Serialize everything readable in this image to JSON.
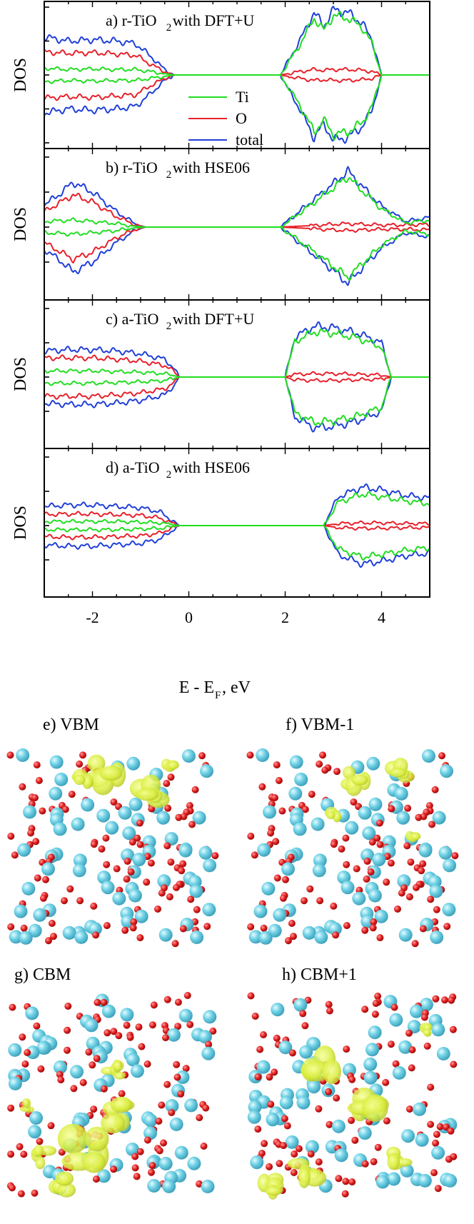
{
  "chart_data": {
    "type": "line",
    "xlabel": "E - E",
    "xlabel_sub": "F",
    "xlabel_unit": ", eV",
    "ylabel": "DOS",
    "xlim": [
      -3.0,
      5.0
    ],
    "ylim": [
      -1.0,
      1.0
    ],
    "xticks": [
      -2,
      0,
      2,
      4
    ],
    "xtick_labels": [
      "-2",
      "0",
      "2",
      "4"
    ],
    "legend": {
      "placement": "center-left (panel a)",
      "entries": [
        {
          "name": "Ti",
          "color": "#22dd22"
        },
        {
          "name": "O",
          "color": "#e8202a"
        },
        {
          "name": "total",
          "color": "#1f3fd8"
        }
      ]
    },
    "panels": [
      {
        "title_pre": "a) r-TiO",
        "title_sub": "2",
        "title_post": " with DFT+U",
        "valence_end": -0.3,
        "conduction_start": 1.9,
        "conduction_end": 4.0,
        "series": [
          {
            "name": "total",
            "x": [
              -3.0,
              -2.5,
              -2.0,
              -1.5,
              -1.1,
              -0.8,
              -0.5,
              -0.3,
              1.9,
              2.3,
              2.6,
              2.8,
              3.0,
              3.3,
              3.6,
              3.8,
              4.0
            ],
            "y": [
              0.56,
              0.5,
              0.52,
              0.5,
              0.46,
              0.28,
              0.08,
              0.0,
              0.0,
              0.5,
              0.92,
              0.72,
              0.96,
              0.92,
              0.76,
              0.52,
              0.0
            ]
          },
          {
            "name": "O",
            "x": [
              -3.0,
              -2.5,
              -2.0,
              -1.5,
              -1.1,
              -0.8,
              -0.5,
              -0.3,
              1.9,
              2.3,
              2.6,
              2.8,
              3.0,
              3.3,
              3.6,
              3.8,
              4.0
            ],
            "y": [
              0.34,
              0.32,
              0.33,
              0.31,
              0.29,
              0.16,
              0.05,
              0.0,
              0.0,
              0.05,
              0.08,
              0.07,
              0.08,
              0.08,
              0.07,
              0.05,
              0.0
            ]
          },
          {
            "name": "Ti",
            "x": [
              -3.0,
              -2.5,
              -2.0,
              -1.5,
              -1.1,
              -0.8,
              -0.5,
              -0.3,
              1.9,
              2.3,
              2.6,
              2.8,
              3.0,
              3.3,
              3.6,
              3.8,
              4.0
            ],
            "y": [
              0.1,
              0.08,
              0.09,
              0.08,
              0.08,
              0.05,
              0.02,
              0.0,
              0.0,
              0.44,
              0.84,
              0.66,
              0.88,
              0.84,
              0.7,
              0.47,
              0.0
            ]
          }
        ]
      },
      {
        "title_pre": "b) r-TiO",
        "title_sub": "2",
        "title_post": " with HSE06",
        "valence_end": -0.9,
        "conduction_start": 1.9,
        "conduction_end": 5.0,
        "series": [
          {
            "name": "total",
            "x": [
              -3.0,
              -2.7,
              -2.4,
              -2.0,
              -1.5,
              -1.1,
              -0.9,
              1.9,
              2.5,
              3.0,
              3.3,
              3.6,
              4.0,
              4.5,
              5.0
            ],
            "y": [
              0.32,
              0.46,
              0.64,
              0.5,
              0.22,
              0.04,
              0.0,
              0.0,
              0.34,
              0.62,
              0.8,
              0.58,
              0.3,
              0.08,
              0.14
            ]
          },
          {
            "name": "O",
            "x": [
              -3.0,
              -2.7,
              -2.4,
              -2.0,
              -1.5,
              -1.1,
              -0.9,
              1.9,
              2.5,
              3.0,
              3.3,
              3.6,
              4.0,
              4.5,
              5.0
            ],
            "y": [
              0.22,
              0.34,
              0.46,
              0.36,
              0.15,
              0.03,
              0.0,
              0.0,
              0.02,
              0.04,
              0.05,
              0.04,
              0.03,
              0.03,
              0.04
            ]
          },
          {
            "name": "Ti",
            "x": [
              -3.0,
              -2.7,
              -2.4,
              -2.0,
              -1.5,
              -1.1,
              -0.9,
              1.9,
              2.5,
              3.0,
              3.3,
              3.6,
              4.0,
              4.5,
              5.0
            ],
            "y": [
              0.08,
              0.09,
              0.1,
              0.08,
              0.05,
              0.01,
              0.0,
              0.0,
              0.3,
              0.56,
              0.72,
              0.52,
              0.26,
              0.06,
              0.1
            ]
          }
        ]
      },
      {
        "title_pre": "c) a-TiO",
        "title_sub": "2",
        "title_post": " with DFT+U",
        "valence_end": -0.2,
        "conduction_start": 2.0,
        "conduction_end": 4.2,
        "series": [
          {
            "name": "total",
            "x": [
              -3.0,
              -2.5,
              -2.0,
              -1.5,
              -1.0,
              -0.5,
              -0.3,
              -0.2,
              2.0,
              2.2,
              2.6,
              3.0,
              3.5,
              4.0,
              4.2
            ],
            "y": [
              0.38,
              0.4,
              0.4,
              0.38,
              0.34,
              0.26,
              0.12,
              0.0,
              0.0,
              0.58,
              0.74,
              0.72,
              0.64,
              0.5,
              0.0
            ]
          },
          {
            "name": "O",
            "x": [
              -3.0,
              -2.5,
              -2.0,
              -1.5,
              -1.0,
              -0.5,
              -0.3,
              -0.2,
              2.0,
              2.2,
              2.6,
              3.0,
              3.5,
              4.0,
              4.2
            ],
            "y": [
              0.28,
              0.28,
              0.28,
              0.26,
              0.23,
              0.17,
              0.08,
              0.0,
              0.0,
              0.04,
              0.05,
              0.05,
              0.04,
              0.03,
              0.0
            ]
          },
          {
            "name": "Ti",
            "x": [
              -3.0,
              -2.5,
              -2.0,
              -1.5,
              -1.0,
              -0.5,
              -0.3,
              -0.2,
              2.0,
              2.2,
              2.6,
              3.0,
              3.5,
              4.0,
              4.2
            ],
            "y": [
              0.09,
              0.09,
              0.09,
              0.08,
              0.07,
              0.05,
              0.02,
              0.0,
              0.0,
              0.52,
              0.66,
              0.64,
              0.57,
              0.44,
              0.0
            ]
          }
        ]
      },
      {
        "title_pre": "d) a-TiO",
        "title_sub": "2",
        "title_post": " with HSE06",
        "valence_end": -0.2,
        "conduction_start": 2.8,
        "conduction_end": 5.0,
        "series": [
          {
            "name": "total",
            "x": [
              -3.0,
              -2.5,
              -2.0,
              -1.5,
              -1.0,
              -0.6,
              -0.4,
              -0.2,
              2.8,
              3.1,
              3.6,
              4.0,
              4.5,
              5.0
            ],
            "y": [
              0.28,
              0.3,
              0.3,
              0.28,
              0.26,
              0.2,
              0.1,
              0.0,
              0.0,
              0.42,
              0.56,
              0.52,
              0.44,
              0.4
            ]
          },
          {
            "name": "O",
            "x": [
              -3.0,
              -2.5,
              -2.0,
              -1.5,
              -1.0,
              -0.6,
              -0.4,
              -0.2,
              2.8,
              3.1,
              3.6,
              4.0,
              4.5,
              5.0
            ],
            "y": [
              0.16,
              0.17,
              0.17,
              0.16,
              0.15,
              0.11,
              0.05,
              0.0,
              0.0,
              0.03,
              0.04,
              0.04,
              0.03,
              0.03
            ]
          },
          {
            "name": "Ti",
            "x": [
              -3.0,
              -2.5,
              -2.0,
              -1.5,
              -1.0,
              -0.6,
              -0.4,
              -0.2,
              2.8,
              3.1,
              3.6,
              4.0,
              4.5,
              5.0
            ],
            "y": [
              0.06,
              0.06,
              0.06,
              0.06,
              0.05,
              0.04,
              0.02,
              0.0,
              0.0,
              0.34,
              0.46,
              0.42,
              0.36,
              0.32
            ]
          }
        ]
      }
    ],
    "grid": false
  },
  "structures": {
    "labels": [
      "e) VBM",
      "f) VBM-1",
      "g) CBM",
      "h) CBM+1"
    ],
    "colors": {
      "ti_atom": "#72d3e6",
      "o_atom": "#e01b1b",
      "density": "#d8ec3c",
      "density_edge": "#aeb82a"
    }
  }
}
